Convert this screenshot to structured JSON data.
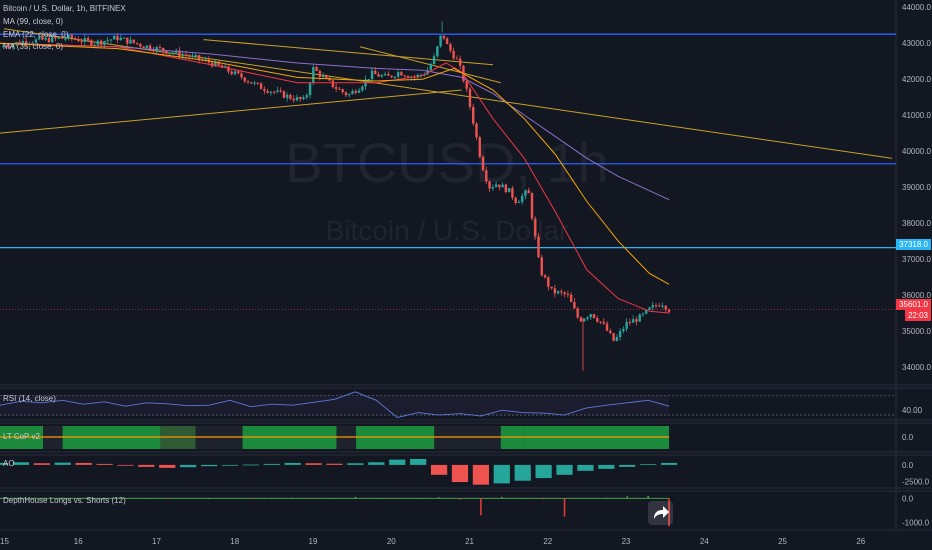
{
  "chart_data": {
    "type": "line",
    "symbol": "Bitcoin / U.S. Dollar, 1h, BITFINEX",
    "watermark": {
      "ticker": "BTCUSD, 1h",
      "name": "Bitcoin / U.S. Dollar"
    },
    "indicators": [
      "MA (99, close, 0)",
      "EMA (22, close, 0)",
      "MA (35, close, 0)"
    ],
    "x_ticks": [
      "15",
      "16",
      "17",
      "18",
      "19",
      "20",
      "21",
      "22",
      "23",
      "24",
      "25",
      "26"
    ],
    "y_ticks": [
      "44000.0",
      "43000.0",
      "42000.0",
      "41000.0",
      "40000.0",
      "39000.0",
      "38000.0",
      "37000.0",
      "36000.0",
      "35000.0",
      "34000.0"
    ],
    "ylim": [
      33500,
      44200
    ],
    "last_price": {
      "value": "35601.0",
      "countdown": "22:03",
      "color": "#f23645"
    },
    "level_tag": {
      "value": "37318.0",
      "color": "#29b6f6"
    },
    "horizontal_levels": [
      {
        "price": 43250,
        "color": "#2962ff"
      },
      {
        "price": 39650,
        "color": "#2962ff"
      },
      {
        "price": 37318,
        "color": "#29b6f6"
      }
    ],
    "price_path": [
      [
        15.0,
        42900
      ],
      [
        15.3,
        43050
      ],
      [
        15.6,
        43100
      ],
      [
        15.9,
        43150
      ],
      [
        16.2,
        43000
      ],
      [
        16.5,
        43150
      ],
      [
        16.8,
        42950
      ],
      [
        17.1,
        42800
      ],
      [
        17.4,
        42650
      ],
      [
        17.7,
        42450
      ],
      [
        17.9,
        42250
      ],
      [
        18.1,
        42050
      ],
      [
        18.3,
        41800
      ],
      [
        18.5,
        41650
      ],
      [
        18.7,
        41500
      ],
      [
        18.9,
        41400
      ],
      [
        19.0,
        42300
      ],
      [
        19.15,
        42000
      ],
      [
        19.3,
        41750
      ],
      [
        19.45,
        41550
      ],
      [
        19.6,
        41800
      ],
      [
        19.75,
        42150
      ],
      [
        19.95,
        42050
      ],
      [
        20.1,
        42200
      ],
      [
        20.3,
        42050
      ],
      [
        20.45,
        42200
      ],
      [
        20.55,
        42600
      ],
      [
        20.65,
        43300
      ],
      [
        20.72,
        42900
      ],
      [
        20.85,
        42500
      ],
      [
        20.95,
        41800
      ],
      [
        21.05,
        40800
      ],
      [
        21.15,
        39700
      ],
      [
        21.25,
        39000
      ],
      [
        21.35,
        39100
      ],
      [
        21.5,
        38900
      ],
      [
        21.6,
        38600
      ],
      [
        21.75,
        38900
      ],
      [
        21.9,
        36700
      ],
      [
        22.05,
        36100
      ],
      [
        22.25,
        36000
      ],
      [
        22.4,
        35300
      ],
      [
        22.55,
        35500
      ],
      [
        22.7,
        35200
      ],
      [
        22.85,
        34700
      ],
      [
        23.0,
        35200
      ],
      [
        23.2,
        35400
      ],
      [
        23.3,
        35600
      ],
      [
        23.45,
        35800
      ],
      [
        23.55,
        35601
      ]
    ],
    "price_low_spike": {
      "x": 22.45,
      "low": 33900
    },
    "price_high_spike": {
      "x": 20.65,
      "high": 43600
    },
    "series": [
      {
        "name": "MA (99, close, 0)",
        "color": "#8e6fc9",
        "points": [
          [
            15.0,
            43000
          ],
          [
            16.5,
            42900
          ],
          [
            17.7,
            42700
          ],
          [
            18.8,
            42450
          ],
          [
            19.8,
            42300
          ],
          [
            20.4,
            42250
          ],
          [
            20.9,
            42050
          ],
          [
            21.3,
            41600
          ],
          [
            21.7,
            41000
          ],
          [
            22.1,
            40400
          ],
          [
            22.5,
            39800
          ],
          [
            22.9,
            39300
          ],
          [
            23.3,
            38900
          ],
          [
            23.55,
            38650
          ]
        ]
      },
      {
        "name": "EMA (22, close, 0)",
        "color": "#f23645",
        "points": [
          [
            15.0,
            43000
          ],
          [
            16.5,
            42900
          ],
          [
            17.7,
            42400
          ],
          [
            18.8,
            41900
          ],
          [
            19.8,
            41900
          ],
          [
            20.4,
            42100
          ],
          [
            20.7,
            42450
          ],
          [
            20.9,
            42200
          ],
          [
            21.3,
            40900
          ],
          [
            21.7,
            39800
          ],
          [
            22.1,
            38300
          ],
          [
            22.5,
            36700
          ],
          [
            22.9,
            35900
          ],
          [
            23.3,
            35550
          ],
          [
            23.55,
            35500
          ]
        ]
      },
      {
        "name": "MA (35, close, 0)",
        "color": "#f7a600",
        "points": [
          [
            15.0,
            43000
          ],
          [
            16.5,
            42850
          ],
          [
            17.7,
            42500
          ],
          [
            18.8,
            42050
          ],
          [
            19.8,
            41950
          ],
          [
            20.4,
            42000
          ],
          [
            20.8,
            42300
          ],
          [
            21.3,
            41700
          ],
          [
            21.7,
            40900
          ],
          [
            22.1,
            39900
          ],
          [
            22.5,
            38600
          ],
          [
            22.9,
            37500
          ],
          [
            23.3,
            36600
          ],
          [
            23.55,
            36300
          ]
        ]
      }
    ],
    "trend_lines": [
      {
        "color": "#c9a227",
        "from": [
          15.05,
          43400
        ],
        "to": [
          26.4,
          39800
        ]
      },
      {
        "color": "#c9a227",
        "from": [
          15.0,
          40500
        ],
        "to": [
          20.9,
          41700
        ]
      },
      {
        "color": "#c9a227",
        "from": [
          17.6,
          43100
        ],
        "to": [
          21.3,
          42400
        ]
      },
      {
        "color": "#c9a227",
        "from": [
          19.6,
          42900
        ],
        "to": [
          21.4,
          41900
        ]
      }
    ],
    "panes": [
      {
        "name": "RSI (14, close)",
        "ticks": [
          "40.00"
        ],
        "levels": [
          70,
          30
        ],
        "ylim": [
          20,
          85
        ],
        "values": [
          50,
          58,
          55,
          60,
          52,
          57,
          48,
          55,
          53,
          49,
          50,
          60,
          47,
          52,
          50,
          56,
          62,
          77,
          60,
          25,
          35,
          30,
          33,
          28,
          40,
          35,
          34,
          30,
          44,
          50,
          55,
          60,
          48
        ]
      },
      {
        "name": "LT CoP v2",
        "ticks": [
          "0.0"
        ],
        "segments": [
          {
            "from": 15.0,
            "to": 15.55,
            "state": "green"
          },
          {
            "from": 15.55,
            "to": 15.8,
            "state": "red"
          },
          {
            "from": 15.8,
            "to": 17.05,
            "state": "green"
          },
          {
            "from": 17.05,
            "to": 17.5,
            "state": "mixed"
          },
          {
            "from": 17.5,
            "to": 18.1,
            "state": "red"
          },
          {
            "from": 18.1,
            "to": 19.3,
            "state": "green"
          },
          {
            "from": 19.3,
            "to": 19.55,
            "state": "red"
          },
          {
            "from": 19.55,
            "to": 20.55,
            "state": "green"
          },
          {
            "from": 20.55,
            "to": 21.4,
            "state": "red"
          },
          {
            "from": 21.4,
            "to": 21.7,
            "state": "green"
          },
          {
            "from": 21.7,
            "to": 23.55,
            "state": "green"
          }
        ]
      },
      {
        "name": "AO",
        "ticks": [
          "0.0",
          "-2500.0"
        ],
        "ylim": [
          -3500,
          1500
        ],
        "values": [
          300,
          400,
          250,
          350,
          300,
          150,
          -100,
          -300,
          -450,
          -350,
          -200,
          -100,
          50,
          150,
          300,
          250,
          180,
          250,
          400,
          800,
          900,
          -1500,
          -2600,
          -3000,
          -2800,
          -2400,
          -2000,
          -1500,
          -900,
          -600,
          -300,
          100,
          300
        ]
      },
      {
        "name": "DepthHouse Longs vs. Shorts (12)",
        "ticks": [
          "0.0",
          "-1000.0"
        ],
        "ylim": [
          -1300,
          300
        ],
        "values": [
          0,
          20,
          -10,
          30,
          0,
          -20,
          10,
          0,
          -30,
          20,
          0,
          10,
          -20,
          0,
          30,
          -10,
          0,
          60,
          0,
          -20,
          0,
          40,
          -50,
          -700,
          60,
          0,
          -40,
          -750,
          20,
          30,
          80,
          100,
          -1150
        ]
      }
    ]
  }
}
